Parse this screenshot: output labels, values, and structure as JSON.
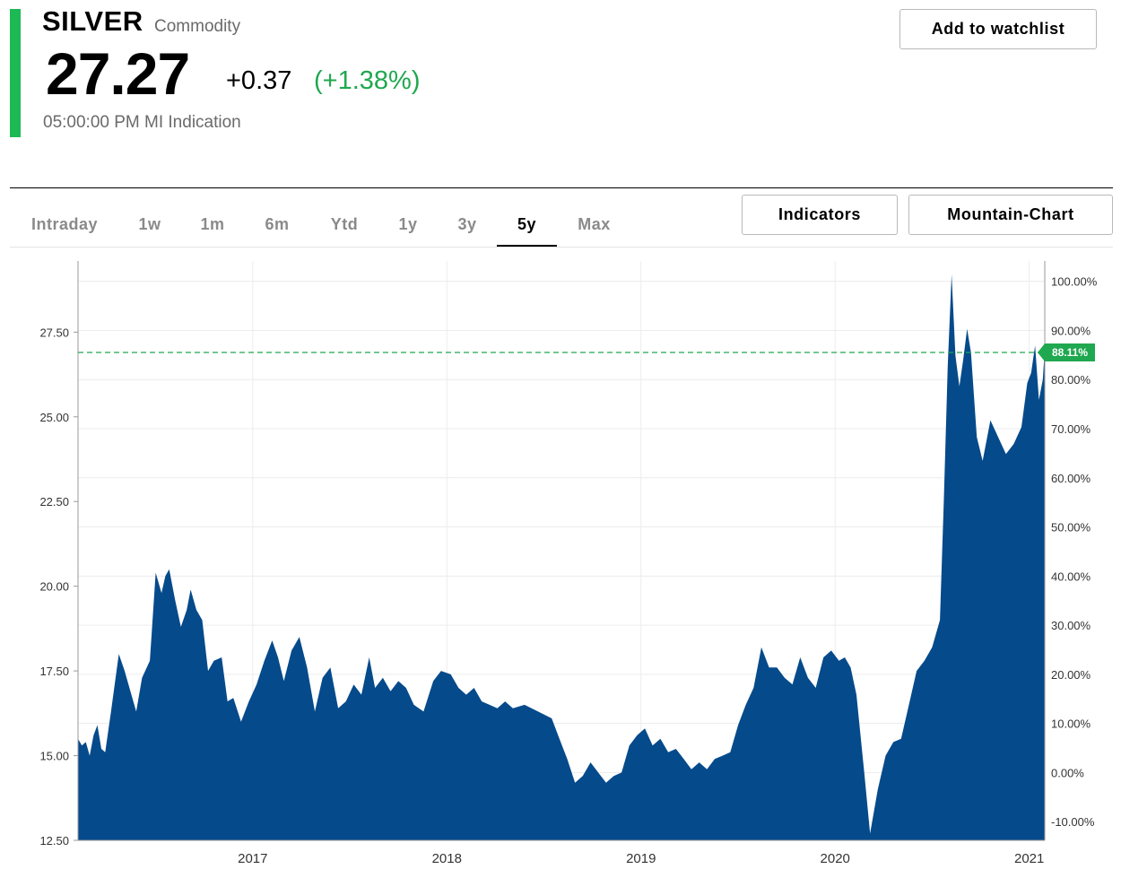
{
  "header": {
    "name": "SILVER",
    "type": "Commodity",
    "price": "27.27",
    "change": "+0.37",
    "change_pct": "(+1.38%)",
    "timestamp": "05:00:00 PM MI Indication",
    "watchlist_label": "Add to watchlist"
  },
  "colors": {
    "accent": "#1db954",
    "area": "#054a8b",
    "positive": "#1fa84f"
  },
  "tabs": [
    {
      "label": "Intraday"
    },
    {
      "label": "1w"
    },
    {
      "label": "1m"
    },
    {
      "label": "6m"
    },
    {
      "label": "Ytd"
    },
    {
      "label": "1y"
    },
    {
      "label": "3y"
    },
    {
      "label": "5y",
      "active": true
    },
    {
      "label": "Max"
    }
  ],
  "toolbar": {
    "indicators_label": "Indicators",
    "chart_type_label": "Mountain-Chart"
  },
  "chart_data": {
    "type": "area",
    "y_left_ticks": [
      "12.50",
      "15.00",
      "17.50",
      "20.00",
      "22.50",
      "25.00",
      "27.50"
    ],
    "y_left_range": [
      12.5,
      29.6
    ],
    "y_right_ticks": [
      "-10.00%",
      "0.00%",
      "10.00%",
      "20.00%",
      "30.00%",
      "40.00%",
      "50.00%",
      "60.00%",
      "70.00%",
      "80.00%",
      "90.00%",
      "100.00%"
    ],
    "x_ticks": [
      "2017",
      "2018",
      "2019",
      "2020",
      "2021"
    ],
    "x_range": [
      2016.1,
      2021.08
    ],
    "reference_value": 26.9,
    "marker_label": "88.11%",
    "grid": true,
    "series": [
      {
        "points": [
          [
            2016.1,
            15.5
          ],
          [
            2016.12,
            15.3
          ],
          [
            2016.14,
            15.4
          ],
          [
            2016.16,
            15.0
          ],
          [
            2016.18,
            15.6
          ],
          [
            2016.2,
            15.9
          ],
          [
            2016.22,
            15.2
          ],
          [
            2016.24,
            15.1
          ],
          [
            2016.27,
            16.3
          ],
          [
            2016.31,
            18.0
          ],
          [
            2016.34,
            17.5
          ],
          [
            2016.37,
            16.9
          ],
          [
            2016.4,
            16.3
          ],
          [
            2016.43,
            17.3
          ],
          [
            2016.47,
            17.8
          ],
          [
            2016.5,
            20.4
          ],
          [
            2016.53,
            19.8
          ],
          [
            2016.55,
            20.3
          ],
          [
            2016.57,
            20.5
          ],
          [
            2016.6,
            19.6
          ],
          [
            2016.63,
            18.8
          ],
          [
            2016.66,
            19.3
          ],
          [
            2016.68,
            19.9
          ],
          [
            2016.71,
            19.3
          ],
          [
            2016.74,
            19.0
          ],
          [
            2016.77,
            17.5
          ],
          [
            2016.8,
            17.8
          ],
          [
            2016.84,
            17.9
          ],
          [
            2016.87,
            16.6
          ],
          [
            2016.9,
            16.7
          ],
          [
            2016.94,
            16.0
          ],
          [
            2016.98,
            16.6
          ],
          [
            2017.02,
            17.1
          ],
          [
            2017.06,
            17.8
          ],
          [
            2017.1,
            18.4
          ],
          [
            2017.13,
            17.9
          ],
          [
            2017.16,
            17.2
          ],
          [
            2017.2,
            18.1
          ],
          [
            2017.24,
            18.5
          ],
          [
            2017.28,
            17.6
          ],
          [
            2017.32,
            16.3
          ],
          [
            2017.36,
            17.3
          ],
          [
            2017.4,
            17.6
          ],
          [
            2017.44,
            16.4
          ],
          [
            2017.48,
            16.6
          ],
          [
            2017.52,
            17.1
          ],
          [
            2017.56,
            16.8
          ],
          [
            2017.6,
            17.9
          ],
          [
            2017.63,
            17.0
          ],
          [
            2017.67,
            17.3
          ],
          [
            2017.71,
            16.9
          ],
          [
            2017.75,
            17.2
          ],
          [
            2017.79,
            17.0
          ],
          [
            2017.83,
            16.5
          ],
          [
            2017.88,
            16.3
          ],
          [
            2017.93,
            17.2
          ],
          [
            2017.97,
            17.5
          ],
          [
            2018.02,
            17.4
          ],
          [
            2018.06,
            17.0
          ],
          [
            2018.1,
            16.8
          ],
          [
            2018.14,
            17.0
          ],
          [
            2018.18,
            16.6
          ],
          [
            2018.22,
            16.5
          ],
          [
            2018.26,
            16.4
          ],
          [
            2018.3,
            16.6
          ],
          [
            2018.34,
            16.4
          ],
          [
            2018.4,
            16.5
          ],
          [
            2018.47,
            16.3
          ],
          [
            2018.54,
            16.1
          ],
          [
            2018.58,
            15.5
          ],
          [
            2018.62,
            14.9
          ],
          [
            2018.66,
            14.2
          ],
          [
            2018.7,
            14.4
          ],
          [
            2018.74,
            14.8
          ],
          [
            2018.78,
            14.5
          ],
          [
            2018.82,
            14.2
          ],
          [
            2018.86,
            14.4
          ],
          [
            2018.9,
            14.5
          ],
          [
            2018.94,
            15.3
          ],
          [
            2018.98,
            15.6
          ],
          [
            2019.02,
            15.8
          ],
          [
            2019.06,
            15.3
          ],
          [
            2019.1,
            15.5
          ],
          [
            2019.14,
            15.1
          ],
          [
            2019.18,
            15.2
          ],
          [
            2019.22,
            14.9
          ],
          [
            2019.26,
            14.6
          ],
          [
            2019.3,
            14.8
          ],
          [
            2019.34,
            14.6
          ],
          [
            2019.38,
            14.9
          ],
          [
            2019.42,
            15.0
          ],
          [
            2019.46,
            15.1
          ],
          [
            2019.5,
            15.9
          ],
          [
            2019.54,
            16.5
          ],
          [
            2019.58,
            17.0
          ],
          [
            2019.62,
            18.2
          ],
          [
            2019.66,
            17.6
          ],
          [
            2019.7,
            17.6
          ],
          [
            2019.74,
            17.3
          ],
          [
            2019.78,
            17.1
          ],
          [
            2019.82,
            17.9
          ],
          [
            2019.86,
            17.3
          ],
          [
            2019.9,
            17.0
          ],
          [
            2019.94,
            17.9
          ],
          [
            2019.98,
            18.1
          ],
          [
            2020.02,
            17.8
          ],
          [
            2020.05,
            17.9
          ],
          [
            2020.08,
            17.6
          ],
          [
            2020.11,
            16.8
          ],
          [
            2020.15,
            14.5
          ],
          [
            2020.18,
            12.7
          ],
          [
            2020.22,
            14.0
          ],
          [
            2020.26,
            15.0
          ],
          [
            2020.3,
            15.4
          ],
          [
            2020.34,
            15.5
          ],
          [
            2020.38,
            16.5
          ],
          [
            2020.42,
            17.5
          ],
          [
            2020.46,
            17.8
          ],
          [
            2020.5,
            18.2
          ],
          [
            2020.54,
            19.0
          ],
          [
            2020.56,
            22.5
          ],
          [
            2020.58,
            26.5
          ],
          [
            2020.6,
            29.2
          ],
          [
            2020.62,
            26.8
          ],
          [
            2020.64,
            25.9
          ],
          [
            2020.66,
            26.7
          ],
          [
            2020.68,
            27.6
          ],
          [
            2020.7,
            26.9
          ],
          [
            2020.73,
            24.4
          ],
          [
            2020.76,
            23.7
          ],
          [
            2020.8,
            24.9
          ],
          [
            2020.84,
            24.4
          ],
          [
            2020.88,
            23.9
          ],
          [
            2020.92,
            24.2
          ],
          [
            2020.96,
            24.7
          ],
          [
            2020.99,
            26.0
          ],
          [
            2021.01,
            26.3
          ],
          [
            2021.03,
            27.1
          ],
          [
            2021.05,
            25.5
          ],
          [
            2021.07,
            26.1
          ],
          [
            2021.08,
            27.0
          ]
        ]
      }
    ]
  }
}
